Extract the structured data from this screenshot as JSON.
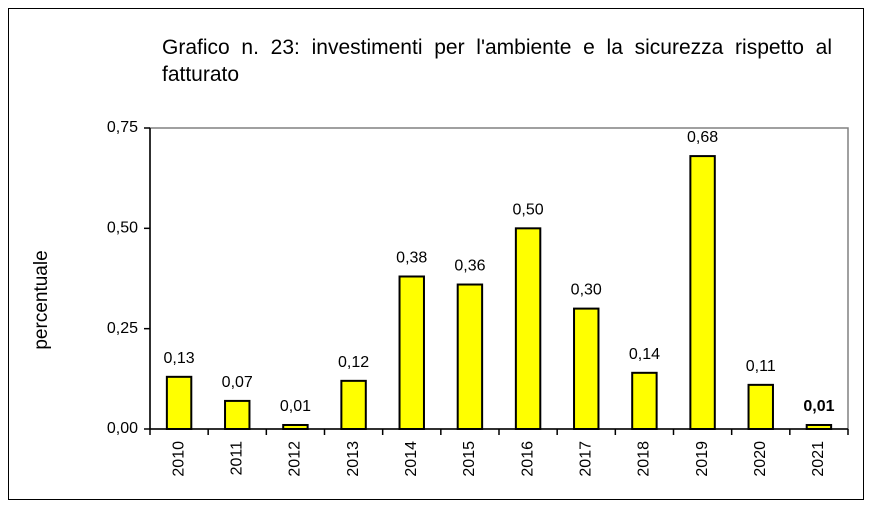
{
  "chart_data": {
    "type": "bar",
    "title": "Grafico n. 23: investimenti per l'ambiente e la sicurezza rispetto al fatturato",
    "ylabel": "percentuale",
    "categories": [
      "2010",
      "2011",
      "2012",
      "2013",
      "2014",
      "2015",
      "2016",
      "2017",
      "2018",
      "2019",
      "2020",
      "2021"
    ],
    "values": [
      0.13,
      0.07,
      0.01,
      0.12,
      0.38,
      0.36,
      0.5,
      0.3,
      0.14,
      0.68,
      0.11,
      0.01
    ],
    "value_labels": [
      "0,13",
      "0,07",
      "0,01",
      "0,12",
      "0,38",
      "0,36",
      "0,50",
      "0,30",
      "0,14",
      "0,68",
      "0,11",
      "0,01"
    ],
    "color": "#ffff00",
    "ylim": [
      0,
      0.75
    ],
    "yticks": [
      {
        "value": 0,
        "label": "0,00"
      },
      {
        "value": 0.25,
        "label": "0,25"
      },
      {
        "value": 0.5,
        "label": "0,50"
      },
      {
        "value": 0.75,
        "label": "0,75"
      }
    ]
  }
}
